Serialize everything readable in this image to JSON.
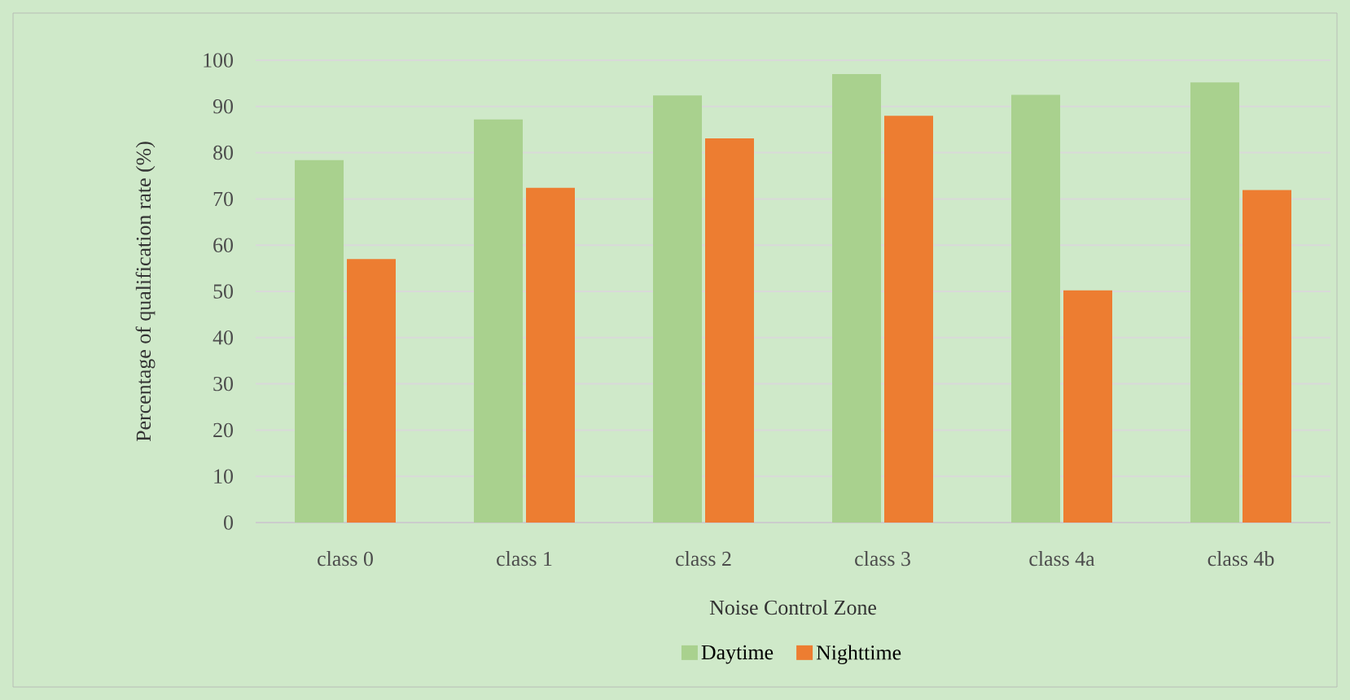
{
  "chart_data": {
    "type": "bar",
    "xlabel": "Noise Control Zone",
    "ylabel": "Percentage of qualification rate (%)",
    "categories": [
      "class 0",
      "class 1",
      "class 2",
      "class 3",
      "class 4a",
      "class 4b"
    ],
    "series": [
      {
        "name": "Daytime",
        "color": "#a9d18e",
        "values": [
          78.4,
          87.2,
          92.4,
          97.0,
          92.5,
          95.2
        ]
      },
      {
        "name": "Nighttime",
        "color": "#ed7d31",
        "values": [
          57.0,
          72.4,
          83.1,
          88.0,
          50.2,
          71.9
        ]
      }
    ],
    "ylim": [
      0,
      100
    ],
    "yticks": [
      0,
      10,
      20,
      30,
      40,
      50,
      60,
      70,
      80,
      90,
      100
    ],
    "grid": "y",
    "legend": "bottom"
  }
}
